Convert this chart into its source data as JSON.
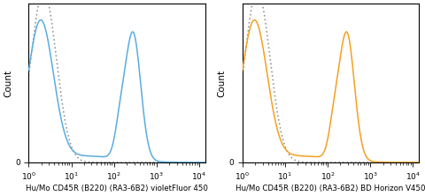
{
  "xlabel_left": "Hu/Mo CD45R (B220) (RA3-6B2) violetFluor 450",
  "xlabel_right": "Hu/Mo CD45R (B220) (RA3-6B2) BD Horizon V450",
  "ylabel": "Count",
  "solid_color_left": "#5aacdf",
  "solid_color_right": "#f5a020",
  "dashed_color": "#888888",
  "xlabel_fontsize": 6.2,
  "ylabel_fontsize": 7.5,
  "tick_fontsize": 6.5,
  "fig_width": 4.8,
  "fig_height": 2.22,
  "dpi": 100
}
